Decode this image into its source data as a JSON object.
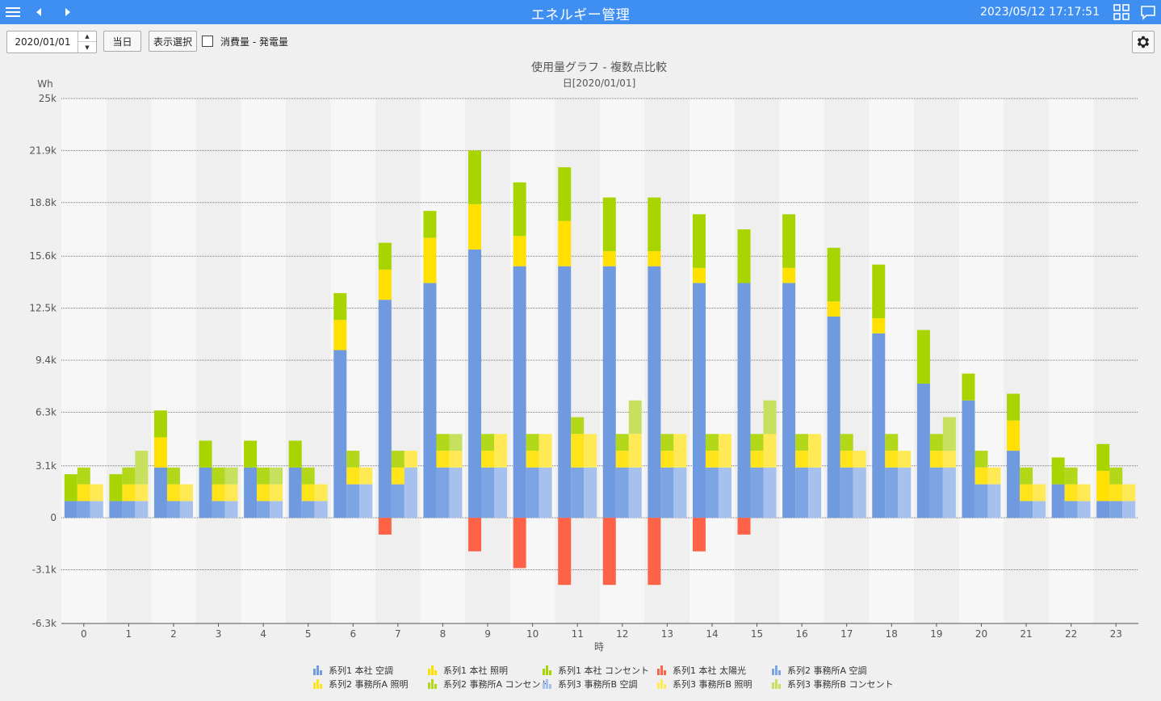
{
  "header": {
    "title": "エネルギー管理",
    "datetime": "2023/05/12 17:17:51"
  },
  "toolbar": {
    "date_value": "2020/01/01",
    "today_label": "当日",
    "display_select_label": "表示選択",
    "checkbox_label": "消費量 - 発電量",
    "checkbox_checked": false
  },
  "chart_data": {
    "type": "bar",
    "title": "使用量グラフ - 複数点比較",
    "subtitle": "日[2020/01/01]",
    "ylabel": "Wh",
    "xlabel": "時",
    "ylim": [
      -6300,
      25000
    ],
    "yticks": [
      "25k",
      "21.9k",
      "18.8k",
      "15.6k",
      "12.5k",
      "9.4k",
      "6.3k",
      "3.1k",
      "0",
      "-3.1k",
      "-6.3k"
    ],
    "ytick_values": [
      25000,
      21900,
      18800,
      15600,
      12500,
      9400,
      6300,
      3100,
      0,
      -3100,
      -6300
    ],
    "categories": [
      "0",
      "1",
      "2",
      "3",
      "4",
      "5",
      "6",
      "7",
      "8",
      "9",
      "10",
      "11",
      "12",
      "13",
      "14",
      "15",
      "16",
      "17",
      "18",
      "19",
      "20",
      "21",
      "22",
      "23"
    ],
    "grid": true,
    "legend_position": "bottom",
    "groups": [
      {
        "name": "系列1",
        "series": [
          {
            "name": "系列1 本社 空調",
            "color": "#6f9ae0",
            "values": [
              1000,
              1000,
              3000,
              3000,
              3000,
              3000,
              10000,
              13000,
              14000,
              16000,
              15000,
              15000,
              15000,
              15000,
              14000,
              14000,
              14000,
              12000,
              11000,
              8000,
              7000,
              4000,
              2000,
              1000
            ]
          },
          {
            "name": "系列1 本社 照明",
            "color": "#ffe000",
            "values": [
              0,
              0,
              1800,
              0,
              0,
              0,
              1800,
              1800,
              2700,
              2700,
              1800,
              2700,
              900,
              900,
              900,
              0,
              900,
              900,
              900,
              0,
              0,
              1800,
              0,
              1800
            ]
          },
          {
            "name": "系列1 本社 コンセント",
            "color": "#a8d400",
            "values": [
              1600,
              1600,
              1600,
              1600,
              1600,
              1600,
              1600,
              1600,
              1600,
              3200,
              3200,
              3200,
              3200,
              3200,
              3200,
              3200,
              3200,
              3200,
              3200,
              3200,
              1600,
              1600,
              1600,
              1600
            ]
          },
          {
            "name": "系列1 本社 太陽光",
            "color": "#ff6347",
            "values": [
              0,
              0,
              0,
              0,
              0,
              0,
              0,
              -1000,
              0,
              -2000,
              -3000,
              -4000,
              -4000,
              -4000,
              -2000,
              -1000,
              0,
              0,
              0,
              0,
              0,
              0,
              0,
              0
            ]
          }
        ]
      },
      {
        "name": "系列2",
        "series": [
          {
            "name": "系列2 事務所A 空調",
            "color": "#7ea5e3",
            "values": [
              1000,
              1000,
              1000,
              1000,
              1000,
              1000,
              2000,
              2000,
              3000,
              3000,
              3000,
              3000,
              3000,
              3000,
              3000,
              3000,
              3000,
              3000,
              3000,
              3000,
              2000,
              1000,
              1000,
              1000
            ]
          },
          {
            "name": "系列2 事務所A 照明",
            "color": "#ffe41a",
            "values": [
              1000,
              1000,
              1000,
              1000,
              1000,
              1000,
              1000,
              1000,
              1000,
              1000,
              1000,
              2000,
              1000,
              1000,
              1000,
              1000,
              1000,
              1000,
              1000,
              1000,
              1000,
              1000,
              1000,
              1000
            ]
          },
          {
            "name": "系列2 事務所A コンセント",
            "color": "#b3d81a",
            "values": [
              1000,
              1000,
              1000,
              1000,
              1000,
              1000,
              1000,
              1000,
              1000,
              1000,
              1000,
              1000,
              1000,
              1000,
              1000,
              1000,
              1000,
              1000,
              1000,
              1000,
              1000,
              1000,
              1000,
              1000
            ]
          }
        ]
      },
      {
        "name": "系列3",
        "series": [
          {
            "name": "系列3 事務所B 空調",
            "color": "#a7c1ee",
            "values": [
              1000,
              1000,
              1000,
              1000,
              1000,
              1000,
              2000,
              3000,
              3000,
              3000,
              3000,
              3000,
              3000,
              3000,
              3000,
              3000,
              3000,
              3000,
              3000,
              3000,
              2000,
              1000,
              1000,
              1000
            ]
          },
          {
            "name": "系列3 事務所B 照明",
            "color": "#ffea55",
            "values": [
              1000,
              1000,
              1000,
              1000,
              1000,
              1000,
              1000,
              1000,
              1000,
              2000,
              2000,
              2000,
              2000,
              2000,
              2000,
              2000,
              2000,
              1000,
              1000,
              1000,
              1000,
              1000,
              1000,
              1000
            ]
          },
          {
            "name": "系列3 事務所B コンセント",
            "color": "#c7e05e",
            "values": [
              0,
              2000,
              0,
              1000,
              1000,
              0,
              0,
              0,
              1000,
              0,
              0,
              0,
              2000,
              0,
              0,
              2000,
              0,
              0,
              0,
              2000,
              0,
              0,
              0,
              0
            ]
          }
        ]
      }
    ]
  },
  "legend": {
    "items": [
      {
        "label": "系列1 本社 空調",
        "color": "#6f9ae0"
      },
      {
        "label": "系列1 本社 照明",
        "color": "#ffe000"
      },
      {
        "label": "系列1 本社 コンセント",
        "color": "#a8d400"
      },
      {
        "label": "系列1 本社 太陽光",
        "color": "#ff6347"
      },
      {
        "label": "系列2 事務所A 空調",
        "color": "#7ea5e3"
      },
      {
        "label": "系列2 事務所A 照明",
        "color": "#ffe41a"
      },
      {
        "label": "系列2 事務所A コンセント",
        "color": "#b3d81a"
      },
      {
        "label": "系列3 事務所B 空調",
        "color": "#a7c1ee"
      },
      {
        "label": "系列3 事務所B 照明",
        "color": "#ffea55"
      },
      {
        "label": "系列3 事務所B コンセント",
        "color": "#c7e05e"
      }
    ]
  }
}
